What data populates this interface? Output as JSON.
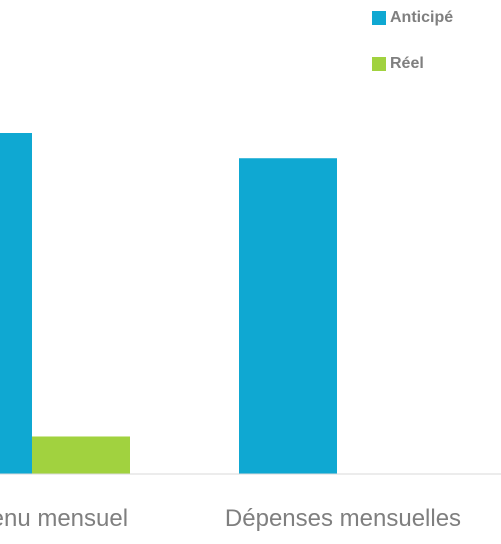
{
  "chart_data": {
    "type": "bar",
    "title": "",
    "xlabel": "",
    "ylabel": "",
    "categories": [
      "Revenu mensuel",
      "Dépenses mensuelles"
    ],
    "series": [
      {
        "name": "Anticipé",
        "color": "#0fa8d2",
        "values": [
          1000,
          926
        ]
      },
      {
        "name": "Réel",
        "color": "#a1d23f",
        "values": [
          110,
          null
        ]
      }
    ],
    "ylim": [
      0,
      1000
    ],
    "grid": false,
    "legend_position": "top-right",
    "axis_color": "#d9d9d9",
    "label_color": "#7f7f7f"
  }
}
